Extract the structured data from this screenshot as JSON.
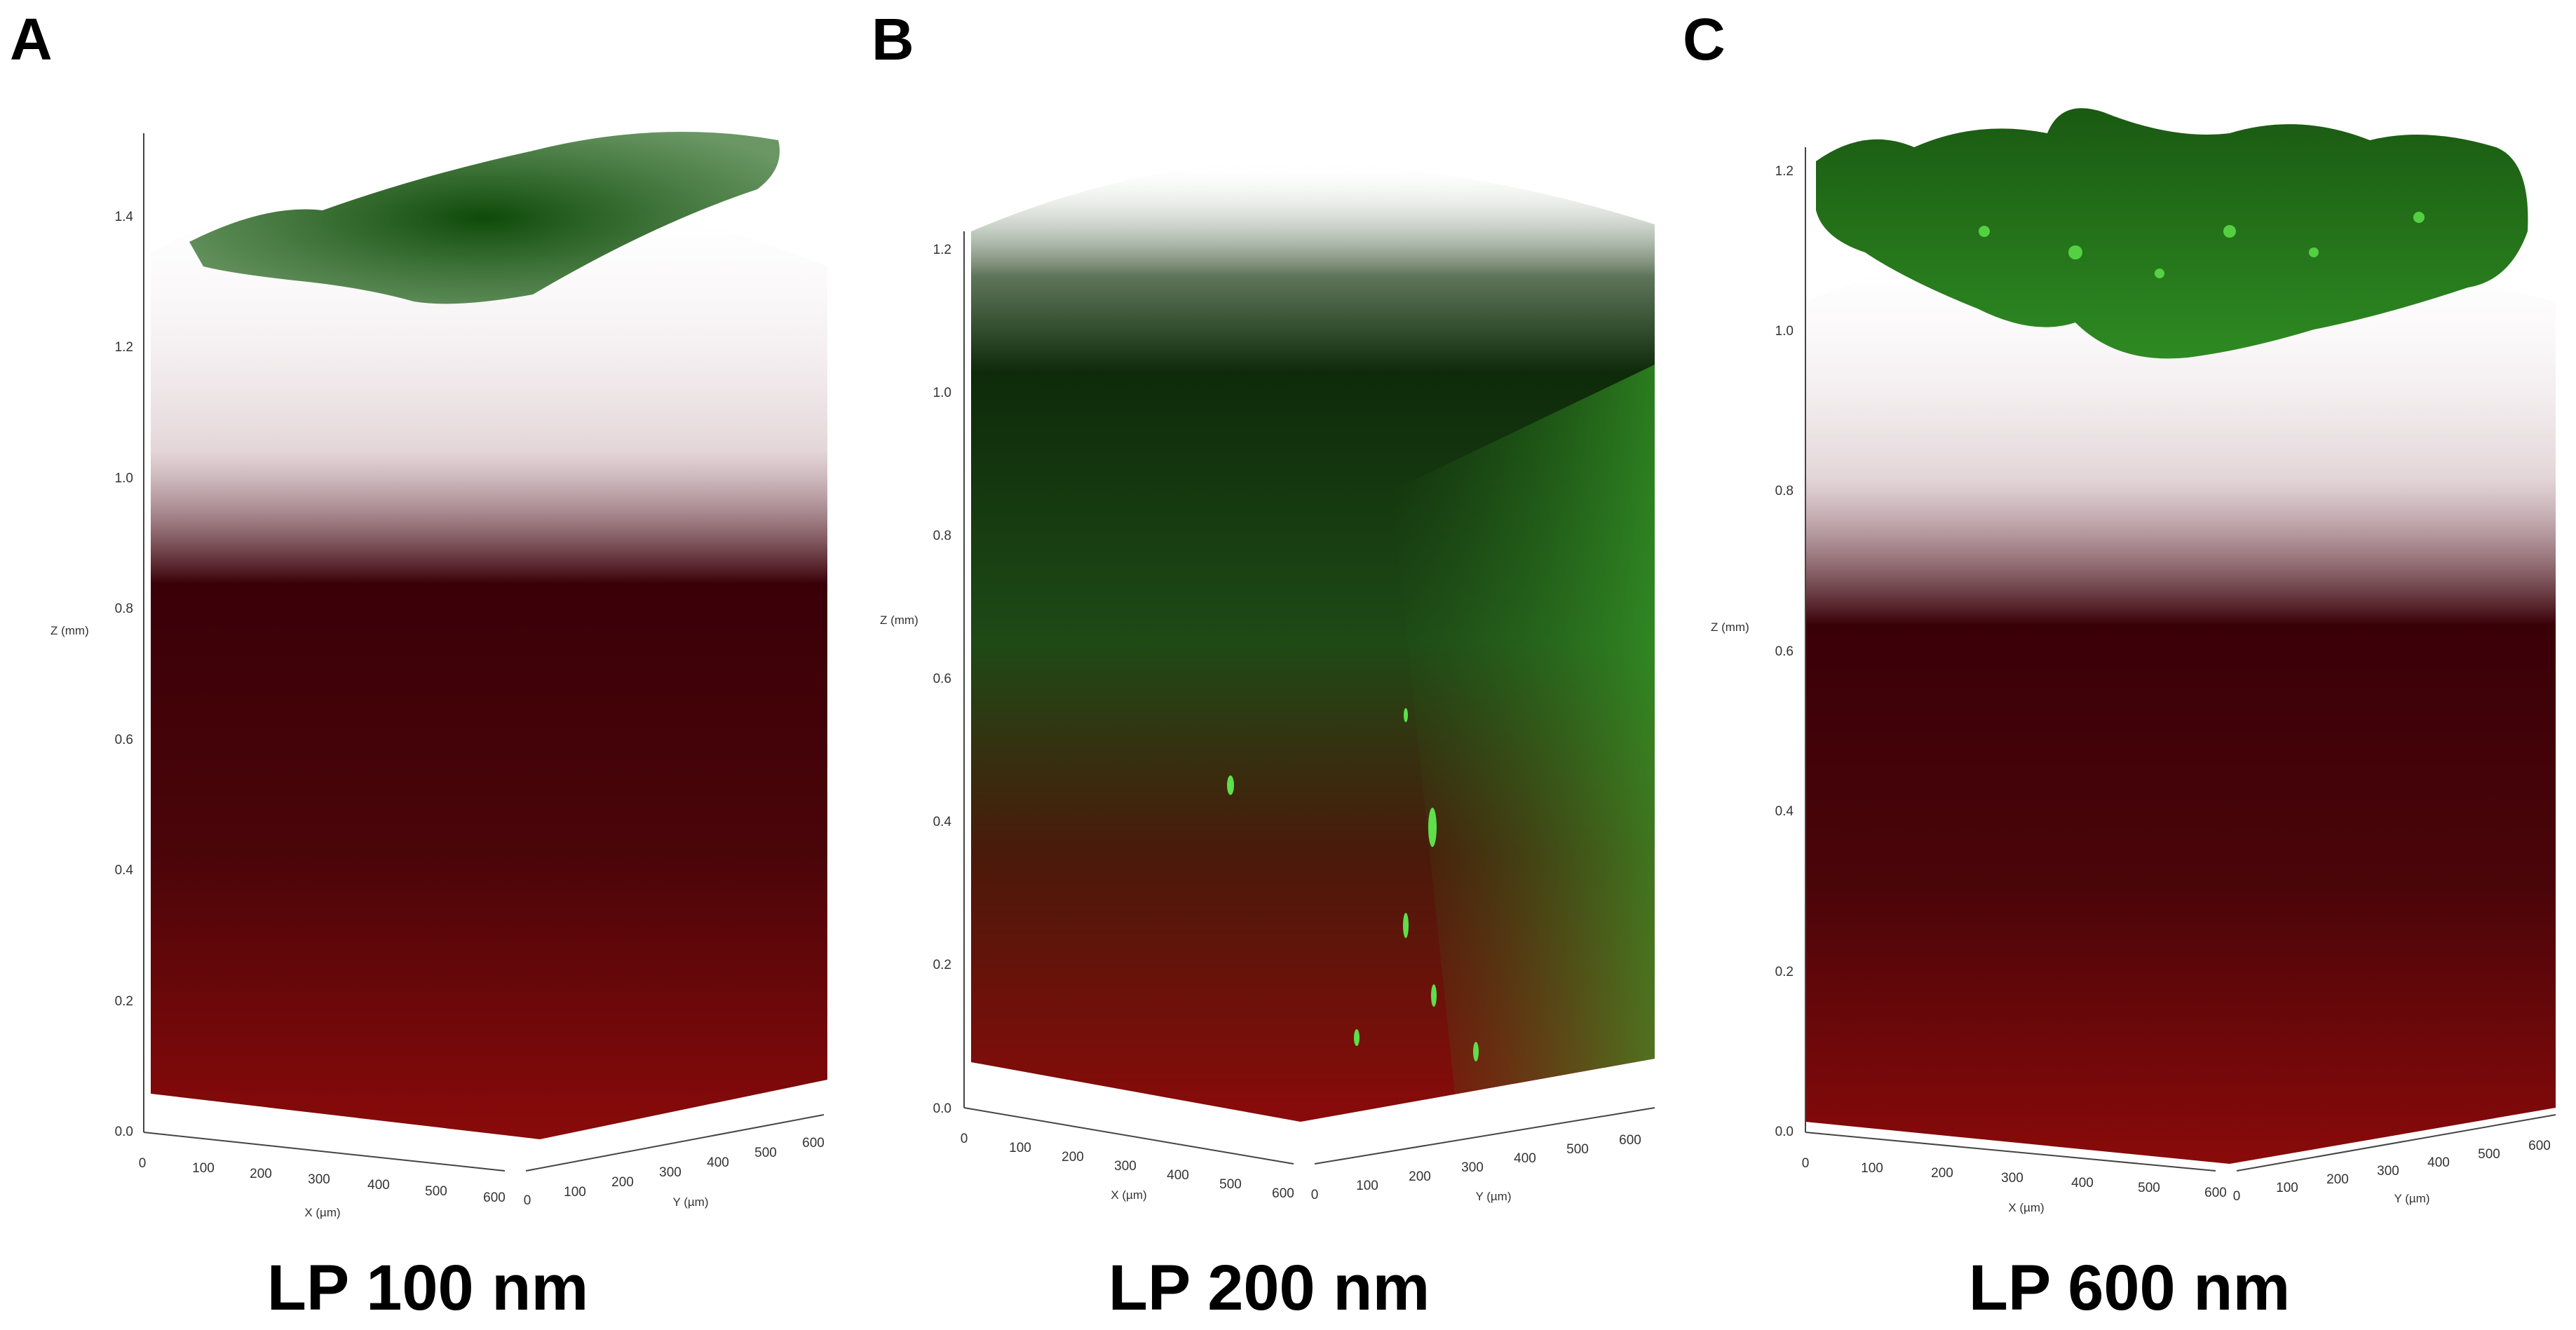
{
  "panels": [
    {
      "id": "a",
      "letter": "A",
      "caption": "LP 100 nm",
      "z_axis": {
        "title": "Z (mm)",
        "ticks": [
          "0.0",
          "0.2",
          "0.4",
          "0.6",
          "0.8",
          "1.0",
          "1.2",
          "1.4"
        ]
      },
      "x_axis": {
        "title": "X (µm)",
        "ticks": [
          "0",
          "100",
          "200",
          "300",
          "400",
          "500",
          "600"
        ]
      },
      "y_axis": {
        "title": "Y (µm)",
        "ticks": [
          "0",
          "100",
          "200",
          "300",
          "400",
          "500",
          "600"
        ]
      },
      "colors": {
        "top_band": "#1f5a1a",
        "body_top": "#3a0008",
        "body_bottom": "#8a0a0a"
      }
    },
    {
      "id": "b",
      "letter": "B",
      "caption": "LP 200 nm",
      "z_axis": {
        "title": "Z (mm)",
        "ticks": [
          "0.0",
          "0.2",
          "0.4",
          "0.6",
          "0.8",
          "1.0",
          "1.2"
        ]
      },
      "x_axis": {
        "title": "X (µm)",
        "ticks": [
          "0",
          "100",
          "200",
          "300",
          "400",
          "500",
          "600"
        ]
      },
      "y_axis": {
        "title": "Y (µm)",
        "ticks": [
          "0",
          "100",
          "200",
          "300",
          "400",
          "500",
          "600"
        ]
      },
      "colors": {
        "top_band": "#1a4a14",
        "body_top": "#2f6a22",
        "body_bottom": "#8a0a0a"
      }
    },
    {
      "id": "c",
      "letter": "C",
      "caption": "LP 600 nm",
      "z_axis": {
        "title": "Z (mm)",
        "ticks": [
          "0.0",
          "0.2",
          "0.4",
          "0.6",
          "0.8",
          "1.0",
          "1.2"
        ]
      },
      "x_axis": {
        "title": "X (µm)",
        "ticks": [
          "0",
          "100",
          "200",
          "300",
          "400",
          "500",
          "600"
        ]
      },
      "y_axis": {
        "title": "Y (µm)",
        "ticks": [
          "0",
          "100",
          "200",
          "300",
          "400",
          "500",
          "600"
        ]
      },
      "colors": {
        "top_band": "#2e8a22",
        "body_top": "#3a0008",
        "body_bottom": "#8a0a0a"
      }
    }
  ]
}
